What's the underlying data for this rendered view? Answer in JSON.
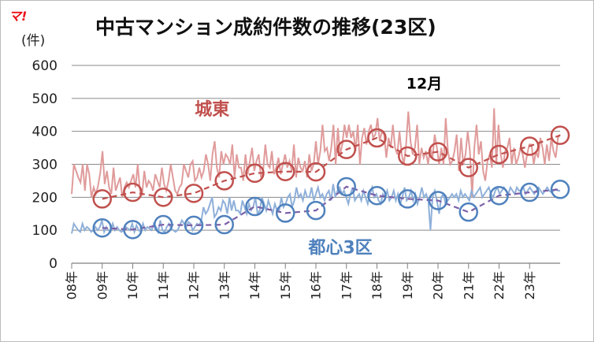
{
  "logo": "マ!",
  "chart_data": {
    "type": "line",
    "title": "中古マンション成約件数の推移(23区)",
    "ylabel": "(件)",
    "ylim": [
      0,
      600
    ],
    "yticks": [
      0,
      100,
      200,
      300,
      400,
      500,
      600
    ],
    "xlim": [
      2008.0,
      2024.0
    ],
    "xticks": [
      "08年",
      "09年",
      "10年",
      "11年",
      "12年",
      "13年",
      "14年",
      "15年",
      "16年",
      "17年",
      "18年",
      "19年",
      "20年",
      "21年",
      "22年",
      "23年"
    ],
    "grid": true,
    "annotations": [
      {
        "text": "12月",
        "x": 2018.0,
        "y": 530,
        "color": "#000000"
      }
    ],
    "series": [
      {
        "name": "城東",
        "color": "#e09b9b",
        "label_color": "#c0504d",
        "label_at": [
          2012.6,
          450
        ],
        "monthly": [
          210,
          300,
          280,
          260,
          245,
          300,
          220,
          300,
          270,
          200,
          230,
          210,
          235,
          275,
          340,
          240,
          280,
          230,
          210,
          290,
          220,
          240,
          260,
          200,
          230,
          245,
          230,
          250,
          270,
          230,
          300,
          220,
          210,
          280,
          230,
          250,
          240,
          220,
          270,
          250,
          230,
          290,
          240,
          220,
          250,
          300,
          260,
          220,
          210,
          230,
          240,
          300,
          280,
          260,
          300,
          310,
          250,
          260,
          290,
          260,
          280,
          330,
          300,
          250,
          330,
          370,
          290,
          260,
          340,
          300,
          330,
          320,
          300,
          360,
          260,
          330,
          290,
          290,
          250,
          330,
          270,
          310,
          350,
          280,
          310,
          330,
          260,
          280,
          360,
          300,
          290,
          340,
          270,
          290,
          320,
          270,
          300,
          330,
          290,
          310,
          280,
          360,
          260,
          320,
          290,
          280,
          310,
          260,
          330,
          280,
          300,
          370,
          300,
          340,
          420,
          340,
          350,
          310,
          350,
          420,
          300,
          410,
          330,
          360,
          420,
          380,
          420,
          380,
          400,
          340,
          420,
          300,
          380,
          410,
          360,
          400,
          420,
          380,
          390,
          440,
          370,
          400,
          390,
          320,
          380,
          350,
          420,
          350,
          330,
          400,
          330,
          300,
          360,
          460,
          370,
          330,
          350,
          420,
          300,
          350,
          320,
          340,
          300,
          350,
          320,
          390,
          350,
          300,
          350,
          300,
          440,
          340,
          300,
          310,
          340,
          390,
          280,
          380,
          300,
          330,
          400,
          340,
          200,
          350,
          420,
          330,
          370,
          280,
          250,
          310,
          330,
          290,
          470,
          300,
          420,
          330,
          290,
          340,
          350,
          380,
          300,
          350,
          300,
          320,
          350,
          330,
          290,
          330,
          360,
          360,
          300,
          340,
          320,
          380,
          350,
          300,
          360,
          310,
          380,
          340,
          320,
          380,
          390
        ],
        "annual": [
          [
            2009,
            195
          ],
          [
            2010,
            215
          ],
          [
            2011,
            200
          ],
          [
            2012,
            212
          ],
          [
            2013,
            250
          ],
          [
            2014,
            273
          ],
          [
            2015,
            278
          ],
          [
            2016,
            277
          ],
          [
            2017,
            345
          ],
          [
            2018,
            380
          ],
          [
            2019,
            325
          ],
          [
            2020,
            338
          ],
          [
            2021,
            290
          ],
          [
            2022,
            330
          ],
          [
            2023,
            355
          ],
          [
            2024,
            388
          ]
        ]
      },
      {
        "name": "都心3区",
        "color": "#8fb0d9",
        "label_color": "#4f81bd",
        "label_at": [
          2016.8,
          30
        ],
        "monthly": [
          90,
          120,
          110,
          100,
          95,
          120,
          100,
          110,
          105,
          95,
          100,
          110,
          100,
          110,
          130,
          95,
          110,
          100,
          95,
          120,
          100,
          110,
          100,
          95,
          100,
          110,
          105,
          100,
          120,
          95,
          115,
          100,
          95,
          120,
          100,
          110,
          105,
          100,
          120,
          110,
          95,
          130,
          100,
          95,
          110,
          120,
          105,
          100,
          95,
          100,
          115,
          130,
          120,
          110,
          125,
          120,
          100,
          110,
          120,
          115,
          130,
          170,
          150,
          160,
          180,
          200,
          140,
          150,
          170,
          160,
          190,
          180,
          150,
          200,
          160,
          190,
          160,
          160,
          150,
          190,
          170,
          150,
          180,
          160,
          170,
          200,
          150,
          160,
          200,
          180,
          160,
          190,
          170,
          150,
          180,
          160,
          160,
          200,
          170,
          180,
          200,
          210,
          170,
          190,
          230,
          200,
          210,
          190,
          220,
          200,
          200,
          230,
          190,
          210,
          230,
          200,
          210,
          190,
          210,
          220,
          190,
          240,
          200,
          220,
          230,
          210,
          220,
          200,
          180,
          210,
          230,
          190,
          200,
          210,
          190,
          220,
          200,
          180,
          210,
          230,
          200,
          210,
          190,
          180,
          210,
          200,
          220,
          190,
          200,
          220,
          190,
          210,
          180,
          200,
          230,
          190,
          200,
          220,
          190,
          210,
          180,
          200,
          230,
          200,
          210,
          190,
          100,
          200,
          220,
          190,
          150,
          200,
          210,
          180,
          190,
          200,
          210,
          200,
          210,
          190,
          220,
          200,
          210,
          200,
          190,
          220,
          200,
          210,
          220,
          230,
          200,
          210,
          220,
          230,
          210,
          200,
          220,
          230,
          210,
          220,
          230,
          220,
          210,
          230,
          220,
          210,
          230,
          220,
          220,
          230,
          210,
          220,
          230,
          220,
          210,
          220,
          230,
          220,
          210,
          220,
          230,
          220,
          215,
          220,
          225,
          220,
          220
        ],
        "annual": [
          [
            2009,
            107
          ],
          [
            2010,
            102
          ],
          [
            2011,
            117
          ],
          [
            2012,
            115
          ],
          [
            2013,
            117
          ],
          [
            2014,
            172
          ],
          [
            2015,
            152
          ],
          [
            2016,
            160
          ],
          [
            2017,
            232
          ],
          [
            2018,
            205
          ],
          [
            2019,
            195
          ],
          [
            2020,
            190
          ],
          [
            2021,
            155
          ],
          [
            2022,
            205
          ],
          [
            2023,
            215
          ],
          [
            2024,
            224
          ]
        ]
      }
    ],
    "trend_color": "#7b5ea7"
  }
}
